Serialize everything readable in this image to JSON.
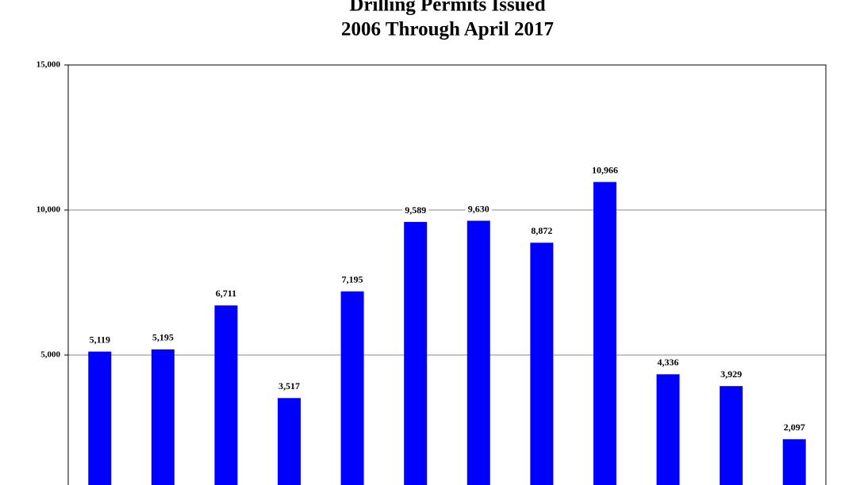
{
  "chart_data": {
    "type": "bar",
    "title": "Drilling Permits Issued",
    "subtitle": "2006 Through April 2017",
    "categories": [
      null,
      null,
      null,
      null,
      null,
      null,
      null,
      null,
      null,
      null,
      null,
      null
    ],
    "values": [
      5119,
      5195,
      6711,
      3517,
      7195,
      9589,
      9630,
      8872,
      10966,
      4336,
      3929,
      2097
    ],
    "value_labels": [
      "5,119",
      "5,195",
      "6,711",
      "3,517",
      "7,195",
      "9,589",
      "9,630",
      "8,872",
      "10,966",
      "4,336",
      "3,929",
      "2,097"
    ],
    "color": "#0000ff",
    "ylim": [
      519,
      15000
    ],
    "yticks": [
      {
        "value": 5000,
        "label": "5,000"
      },
      {
        "value": 10000,
        "label": "10,000"
      },
      {
        "value": 15000,
        "label": "15,000"
      }
    ],
    "grid": true
  }
}
